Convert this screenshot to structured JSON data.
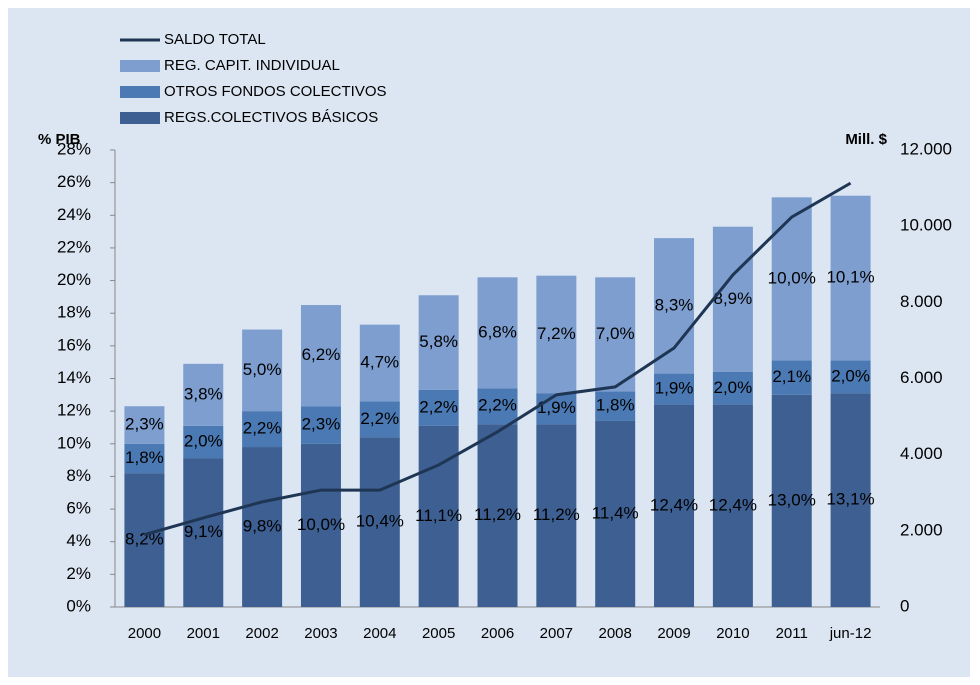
{
  "chart_data": {
    "type": "bar",
    "y_axis_title": "% PIB",
    "y2_axis_title": "Mill. $",
    "categories": [
      "2000",
      "2001",
      "2002",
      "2003",
      "2004",
      "2005",
      "2006",
      "2007",
      "2008",
      "2009",
      "2010",
      "2011",
      "jun-12"
    ],
    "series": [
      {
        "name": "REGS.COLECTIVOS BÁSICOS",
        "color": "#3d5f91",
        "values": [
          8.2,
          9.1,
          9.8,
          10.0,
          10.4,
          11.1,
          11.2,
          11.2,
          11.4,
          12.4,
          12.4,
          13.0,
          13.1
        ],
        "value_labels": [
          "8,2%",
          "9,1%",
          "9,8%",
          "10,0%",
          "10,4%",
          "11,1%",
          "11,2%",
          "11,2%",
          "11,4%",
          "12,4%",
          "12,4%",
          "13,0%",
          "13,1%"
        ]
      },
      {
        "name": "OTROS FONDOS COLECTIVOS",
        "color": "#4a79b3",
        "values": [
          1.8,
          2.0,
          2.2,
          2.3,
          2.2,
          2.2,
          2.2,
          1.9,
          1.8,
          1.9,
          2.0,
          2.1,
          2.0
        ],
        "value_labels": [
          "1,8%",
          "2,0%",
          "2,2%",
          "2,3%",
          "2,2%",
          "2,2%",
          "2,2%",
          "1,9%",
          "1,8%",
          "1,9%",
          "2,0%",
          "2,1%",
          "2,0%"
        ]
      },
      {
        "name": "REG. CAPIT. INDIVIDUAL",
        "color": "#7d9ecf",
        "values": [
          2.3,
          3.8,
          5.0,
          6.2,
          4.7,
          5.8,
          6.8,
          7.2,
          7.0,
          8.3,
          8.9,
          10.0,
          10.1
        ],
        "value_labels": [
          "2,3%",
          "3,8%",
          "5,0%",
          "6,2%",
          "4,7%",
          "5,8%",
          "6,8%",
          "7,2%",
          "7,0%",
          "8,3%",
          "8,9%",
          "10,0%",
          "10,1%"
        ]
      },
      {
        "name": "SALDO TOTAL",
        "color": "#1f3554",
        "type": "line",
        "axis": "y2",
        "values": [
          1900,
          2340,
          2760,
          3070,
          3070,
          3730,
          4600,
          5570,
          5780,
          6800,
          8720,
          10240,
          11130
        ]
      }
    ],
    "ylim": [
      0,
      28
    ],
    "yticks": [
      {
        "value": 0,
        "label": "0%"
      },
      {
        "value": 2,
        "label": "2%"
      },
      {
        "value": 4,
        "label": "4%"
      },
      {
        "value": 6,
        "label": "6%"
      },
      {
        "value": 8,
        "label": "8%"
      },
      {
        "value": 10,
        "label": "10%"
      },
      {
        "value": 12,
        "label": "12%"
      },
      {
        "value": 14,
        "label": "14%"
      },
      {
        "value": 16,
        "label": "16%"
      },
      {
        "value": 18,
        "label": "18%"
      },
      {
        "value": 20,
        "label": "20%"
      },
      {
        "value": 22,
        "label": "22%"
      },
      {
        "value": 24,
        "label": "24%"
      },
      {
        "value": 26,
        "label": "26%"
      },
      {
        "value": 28,
        "label": "28%"
      }
    ],
    "y2lim": [
      0,
      12000
    ],
    "y2ticks": [
      0,
      {
        "value": 2000,
        "label": "2.000"
      },
      {
        "value": 4000,
        "label": "4.000"
      },
      {
        "value": 6000,
        "label": "6.000"
      },
      {
        "value": 8000,
        "label": "8.000"
      },
      {
        "value": 10000,
        "label": "10.000"
      },
      {
        "value": 12000,
        "label": "12.000"
      }
    ],
    "stacked": true,
    "grid": false,
    "legend": "top-left"
  }
}
